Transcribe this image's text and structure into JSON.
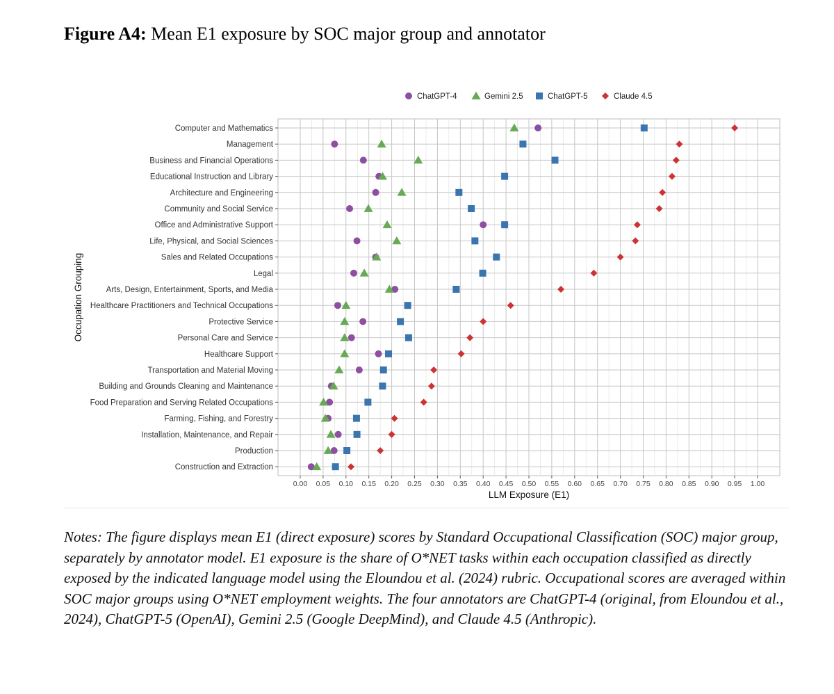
{
  "figure": {
    "label": "Figure A4:",
    "title": "Mean E1 exposure by SOC major group and annotator"
  },
  "notes": "Notes: The figure displays mean E1 (direct exposure) scores by Standard Occupational Classification (SOC) major group, separately by annotator model. E1 exposure is the share of O*NET tasks within each occupation classified as directly exposed by the indicated language model using the Eloundou et al. (2024) rubric. Occupational scores are averaged within SOC major groups using O*NET employment weights. The four annotators are ChatGPT-4 (original, from Eloundou et al., 2024), ChatGPT-5 (OpenAI), Gemini 2.5 (Google DeepMind), and Claude 4.5 (Anthropic).",
  "chart_data": {
    "type": "scatter",
    "title": "",
    "xlabel": "LLM Exposure (E1)",
    "ylabel": "Occupation Grouping",
    "xlim": [
      -0.025,
      1.045
    ],
    "x_ticks": [
      "0.00",
      "0.05",
      "0.10",
      "0.15",
      "0.20",
      "0.25",
      "0.30",
      "0.35",
      "0.40",
      "0.45",
      "0.50",
      "0.55",
      "0.60",
      "0.65",
      "0.70",
      "0.75",
      "0.80",
      "0.85",
      "0.90",
      "0.95",
      "1.00"
    ],
    "grid": true,
    "legend_position": "top",
    "categories": [
      "Computer and Mathematics",
      "Management",
      "Business and Financial Operations",
      "Educational Instruction and Library",
      "Architecture and Engineering",
      "Community and Social Service",
      "Office and Administrative Support",
      "Life, Physical, and Social Sciences",
      "Sales and Related Occupations",
      "Legal",
      "Arts, Design, Entertainment, Sports, and Media",
      "Healthcare Practitioners and Technical Occupations",
      "Protective Service",
      "Personal Care and Service",
      "Healthcare Support",
      "Transportation and Material Moving",
      "Building and Grounds Cleaning and Maintenance",
      "Food Preparation and Serving Related Occupations",
      "Farming, Fishing, and Forestry",
      "Installation, Maintenance, and Repair",
      "Production",
      "Construction and Extraction"
    ],
    "series": [
      {
        "name": "ChatGPT-4",
        "marker": "circle",
        "color": "#8e4fa3",
        "values": [
          0.52,
          0.075,
          0.138,
          0.172,
          0.165,
          0.108,
          0.4,
          0.124,
          0.165,
          0.117,
          0.207,
          0.082,
          0.137,
          0.112,
          0.171,
          0.129,
          0.068,
          0.064,
          0.061,
          0.083,
          0.074,
          0.024
        ]
      },
      {
        "name": "Gemini 2.5",
        "marker": "triangle",
        "color": "#66aa55",
        "values": [
          0.468,
          0.178,
          0.258,
          0.18,
          0.222,
          0.149,
          0.19,
          0.211,
          0.167,
          0.14,
          0.195,
          0.1,
          0.097,
          0.097,
          0.097,
          0.085,
          0.073,
          0.051,
          0.055,
          0.067,
          0.061,
          0.036
        ]
      },
      {
        "name": "ChatGPT-5",
        "marker": "square",
        "color": "#3a75b0",
        "values": [
          0.752,
          0.487,
          0.557,
          0.447,
          0.347,
          0.374,
          0.447,
          0.382,
          0.429,
          0.399,
          0.341,
          0.235,
          0.219,
          0.237,
          0.193,
          0.182,
          0.18,
          0.148,
          0.123,
          0.124,
          0.102,
          0.077
        ]
      },
      {
        "name": "Claude 4.5",
        "marker": "diamond",
        "color": "#cc3333",
        "values": [
          0.95,
          0.829,
          0.822,
          0.813,
          0.792,
          0.785,
          0.737,
          0.733,
          0.7,
          0.642,
          0.57,
          0.46,
          0.4,
          0.371,
          0.352,
          0.292,
          0.287,
          0.27,
          0.206,
          0.2,
          0.175,
          0.111
        ]
      }
    ]
  }
}
